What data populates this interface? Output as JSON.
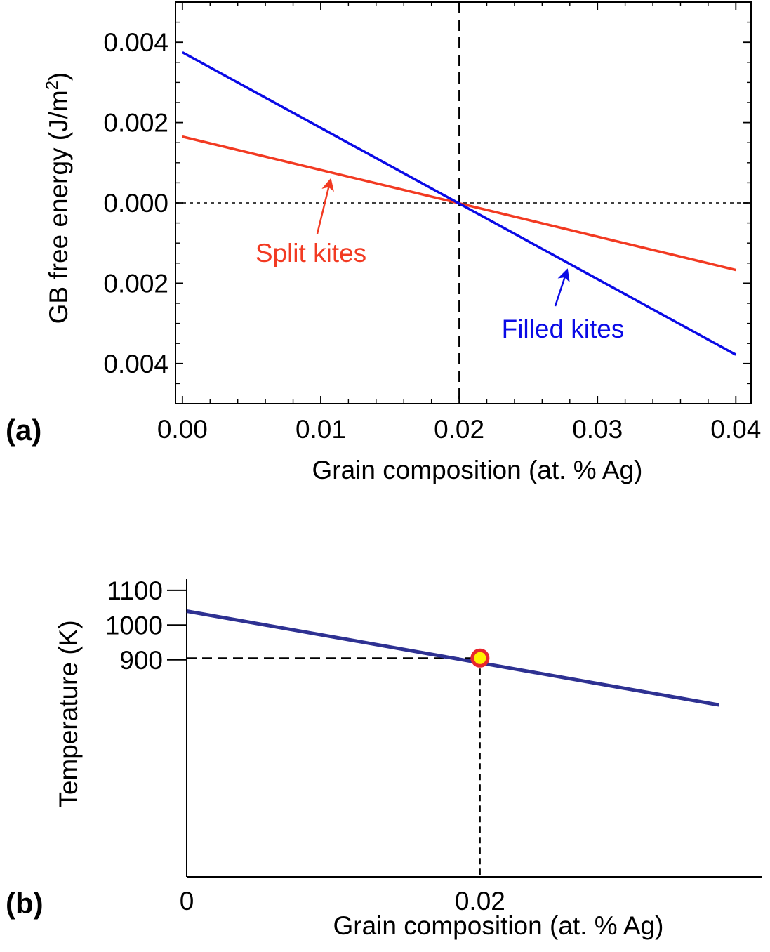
{
  "chart_data": [
    {
      "panel_label": "(a)",
      "type": "line",
      "xlabel": "Grain composition (at. % Ag)",
      "ylabel": "GB free energy (J/m",
      "ylabel_sup": "2",
      "ylabel_close": ")",
      "xlim": [
        -0.0005,
        0.0411
      ],
      "ylim": [
        -0.005,
        0.005
      ],
      "x_ticks": [
        {
          "value": 0.0,
          "label": "0.00"
        },
        {
          "value": 0.01,
          "label": "0.01"
        },
        {
          "value": 0.02,
          "label": "0.02"
        },
        {
          "value": 0.03,
          "label": "0.03"
        },
        {
          "value": 0.04,
          "label": "0.04"
        }
      ],
      "y_ticks": [
        {
          "value": 0.004,
          "label": "0.004"
        },
        {
          "value": 0.002,
          "label": "0.002"
        },
        {
          "value": 0.0,
          "label": "0.000"
        },
        {
          "value": -0.002,
          "label": "0.002"
        },
        {
          "value": -0.004,
          "label": "0.004"
        }
      ],
      "reference_lines": {
        "vertical_x": 0.02,
        "horizontal_y": 0.0
      },
      "series": [
        {
          "name": "Split kites",
          "color": "#f23a22",
          "x": [
            0.0,
            0.04
          ],
          "y": [
            0.00165,
            -0.00167
          ]
        },
        {
          "name": "Filled kites",
          "color": "#0a0ae6",
          "x": [
            0.0,
            0.04
          ],
          "y": [
            0.00375,
            -0.00378
          ]
        }
      ],
      "annotations": [
        {
          "text": "Split kites",
          "color": "#f23a22",
          "arrow_to": [
            0.0107,
            0.00057
          ]
        },
        {
          "text": "Filled kites",
          "color": "#0a0ae6",
          "arrow_to": [
            0.0278,
            -0.00168
          ]
        }
      ],
      "grid": false
    },
    {
      "panel_label": "(b)",
      "type": "line",
      "xlabel": "Grain composition (at. % Ag)",
      "ylabel": "Temperature (K)",
      "x_ticks": [
        {
          "value": 0.0,
          "label": "0"
        },
        {
          "value": 0.02,
          "label": "0.02"
        }
      ],
      "y_ticks": [
        {
          "value": 1100,
          "label": "1100"
        },
        {
          "value": 1000,
          "label": "1000"
        },
        {
          "value": 900,
          "label": "900"
        }
      ],
      "xlim": [
        0.0,
        0.0392
      ],
      "ylim": [
        275,
        1132
      ],
      "series": [
        {
          "name": "",
          "color": "#2e3192",
          "x": [
            0.0,
            0.0363
          ],
          "y": [
            1040,
            770
          ]
        }
      ],
      "highlight_point": {
        "x": 0.02,
        "y": 905,
        "fill": "#fff200",
        "stroke": "#e8262d"
      },
      "reference_lines": {
        "vertical_x": 0.02,
        "horizontal_y": 905
      },
      "grid": false
    }
  ]
}
